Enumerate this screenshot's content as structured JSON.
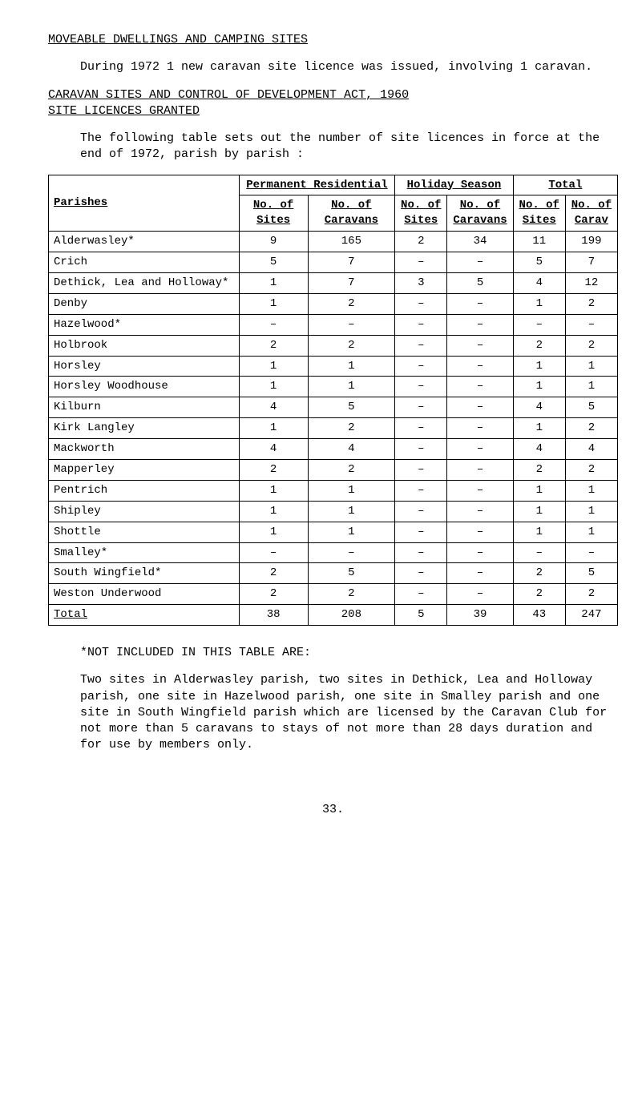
{
  "title": "MOVEABLE DWELLINGS AND CAMPING SITES",
  "para1": "During 1972 1 new caravan site licence was issued, involving 1 caravan.",
  "heading2_line1": "CARAVAN SITES AND CONTROL OF DEVELOPMENT ACT, 1960",
  "heading2_line2": "SITE LICENCES GRANTED",
  "para2": "The following table sets out the number of site licences in force at the end of 1972, parish by parish :",
  "table": {
    "group_headers": {
      "parishes": "Parishes",
      "permanent": "Permanent Residential",
      "holiday": "Holiday Season",
      "total": "Total"
    },
    "sub_headers": {
      "no_of": "No. of",
      "sites": "Sites",
      "caravans": "Caravans",
      "carav": "Carav"
    },
    "rows": [
      {
        "parish": "Alderwasley*",
        "pr_sites": "9",
        "pr_carav": "165",
        "hs_sites": "2",
        "hs_carav": "34",
        "t_sites": "11",
        "t_carav": "199"
      },
      {
        "parish": "Crich",
        "pr_sites": "5",
        "pr_carav": "7",
        "hs_sites": "–",
        "hs_carav": "–",
        "t_sites": "5",
        "t_carav": "7"
      },
      {
        "parish": "Dethick, Lea and Holloway*",
        "pr_sites": "1",
        "pr_carav": "7",
        "hs_sites": "3",
        "hs_carav": "5",
        "t_sites": "4",
        "t_carav": "12"
      },
      {
        "parish": "Denby",
        "pr_sites": "1",
        "pr_carav": "2",
        "hs_sites": "–",
        "hs_carav": "–",
        "t_sites": "1",
        "t_carav": "2"
      },
      {
        "parish": "Hazelwood*",
        "pr_sites": "–",
        "pr_carav": "–",
        "hs_sites": "–",
        "hs_carav": "–",
        "t_sites": "–",
        "t_carav": "–"
      },
      {
        "parish": "Holbrook",
        "pr_sites": "2",
        "pr_carav": "2",
        "hs_sites": "–",
        "hs_carav": "–",
        "t_sites": "2",
        "t_carav": "2"
      },
      {
        "parish": "Horsley",
        "pr_sites": "1",
        "pr_carav": "1",
        "hs_sites": "–",
        "hs_carav": "–",
        "t_sites": "1",
        "t_carav": "1"
      },
      {
        "parish": "Horsley Woodhouse",
        "pr_sites": "1",
        "pr_carav": "1",
        "hs_sites": "–",
        "hs_carav": "–",
        "t_sites": "1",
        "t_carav": "1"
      },
      {
        "parish": "Kilburn",
        "pr_sites": "4",
        "pr_carav": "5",
        "hs_sites": "–",
        "hs_carav": "–",
        "t_sites": "4",
        "t_carav": "5"
      },
      {
        "parish": "Kirk Langley",
        "pr_sites": "1",
        "pr_carav": "2",
        "hs_sites": "–",
        "hs_carav": "–",
        "t_sites": "1",
        "t_carav": "2"
      },
      {
        "parish": "Mackworth",
        "pr_sites": "4",
        "pr_carav": "4",
        "hs_sites": "–",
        "hs_carav": "–",
        "t_sites": "4",
        "t_carav": "4"
      },
      {
        "parish": "Mapperley",
        "pr_sites": "2",
        "pr_carav": "2",
        "hs_sites": "–",
        "hs_carav": "–",
        "t_sites": "2",
        "t_carav": "2"
      },
      {
        "parish": "Pentrich",
        "pr_sites": "1",
        "pr_carav": "1",
        "hs_sites": "–",
        "hs_carav": "–",
        "t_sites": "1",
        "t_carav": "1"
      },
      {
        "parish": "Shipley",
        "pr_sites": "1",
        "pr_carav": "1",
        "hs_sites": "–",
        "hs_carav": "–",
        "t_sites": "1",
        "t_carav": "1"
      },
      {
        "parish": "Shottle",
        "pr_sites": "1",
        "pr_carav": "1",
        "hs_sites": "–",
        "hs_carav": "–",
        "t_sites": "1",
        "t_carav": "1"
      },
      {
        "parish": "Smalley*",
        "pr_sites": "–",
        "pr_carav": "–",
        "hs_sites": "–",
        "hs_carav": "–",
        "t_sites": "–",
        "t_carav": "–"
      },
      {
        "parish": "South Wingfield*",
        "pr_sites": "2",
        "pr_carav": "5",
        "hs_sites": "–",
        "hs_carav": "–",
        "t_sites": "2",
        "t_carav": "5"
      },
      {
        "parish": "Weston Underwood",
        "pr_sites": "2",
        "pr_carav": "2",
        "hs_sites": "–",
        "hs_carav": "–",
        "t_sites": "2",
        "t_carav": "2"
      }
    ],
    "total_row": {
      "parish": "Total",
      "pr_sites": "38",
      "pr_carav": "208",
      "hs_sites": "5",
      "hs_carav": "39",
      "t_sites": "43",
      "t_carav": "247"
    }
  },
  "footnote_title": "*NOT INCLUDED IN THIS TABLE ARE:",
  "footnote_body": "Two sites in Alderwasley parish, two sites in Dethick, Lea and Holloway parish, one site in Hazelwood parish, one site in Smalley parish and one site in South Wingfield parish which are licensed by the Caravan Club for not more than 5 caravans to stays of not more than 28 days duration and for use by members only.",
  "page_number": "33."
}
